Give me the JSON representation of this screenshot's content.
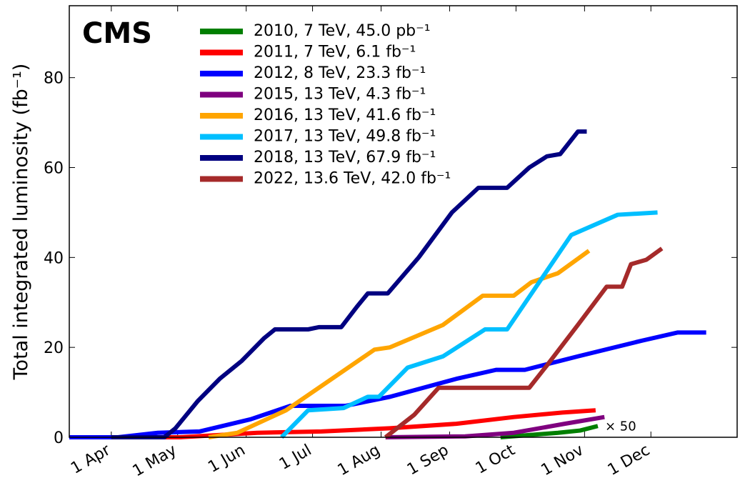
{
  "chart_data": {
    "type": "line",
    "y_label": "Total integrated luminosity (fb⁻¹)",
    "annotations": [
      "CMS",
      "× 50"
    ],
    "xlim": [
      72,
      374
    ],
    "ylim": [
      0,
      96
    ],
    "xticks": [
      {
        "value": 91,
        "label": "1 Apr"
      },
      {
        "value": 121,
        "label": "1 May"
      },
      {
        "value": 152,
        "label": "1 Jun"
      },
      {
        "value": 182,
        "label": "1 Jul"
      },
      {
        "value": 213,
        "label": "1 Aug"
      },
      {
        "value": 244,
        "label": "1 Sep"
      },
      {
        "value": 274,
        "label": "1 Oct"
      },
      {
        "value": 305,
        "label": "1 Nov"
      },
      {
        "value": 335,
        "label": "1 Dec"
      }
    ],
    "yticks": [
      0,
      20,
      40,
      60,
      80
    ],
    "legend": "upper center",
    "series": [
      {
        "name": "2010, 7 TeV, 45.0 pb⁻¹",
        "color": "#007f00",
        "x": [
          267,
          280,
          293,
          303,
          311
        ],
        "values": [
          0,
          0.5,
          1,
          1.5,
          2.5
        ]
      },
      {
        "name": "2011, 7 TeV, 6.1 fb⁻¹",
        "color": "#ff0000",
        "x": [
          72,
          122,
          157,
          186,
          217,
          247,
          273,
          295,
          310
        ],
        "values": [
          0,
          0,
          1,
          1.3,
          2,
          3,
          4.5,
          5.5,
          6
        ]
      },
      {
        "name": "2012, 8 TeV, 23.3 fb⁻¹",
        "color": "#0000ff",
        "x": [
          72,
          94,
          112,
          131,
          154,
          172,
          197,
          217,
          247,
          265,
          278,
          302,
          331,
          347,
          360
        ],
        "values": [
          0,
          0,
          1,
          1.3,
          4,
          7,
          7,
          9,
          13,
          15,
          15,
          18,
          21.5,
          23.3,
          23.3
        ]
      },
      {
        "name": "2015, 13 TeV, 4.3 fb⁻¹",
        "color": "#7f007f",
        "x": [
          215,
          251,
          273,
          296,
          314
        ],
        "values": [
          0,
          0.2,
          1,
          3,
          4.5
        ]
      },
      {
        "name": "2016, 13 TeV, 41.6 fb⁻¹",
        "color": "#ffa500",
        "x": [
          135,
          148,
          170,
          210,
          217,
          241,
          259,
          273,
          281,
          293,
          307
        ],
        "values": [
          0,
          1,
          6,
          19.5,
          20,
          25,
          31.5,
          31.5,
          34.5,
          36.5,
          41.5
        ]
      },
      {
        "name": "2017, 13 TeV, 49.8 fb⁻¹",
        "color": "#00bfff",
        "x": [
          168,
          180,
          196,
          207,
          212,
          225,
          241,
          260,
          270,
          299,
          320,
          338
        ],
        "values": [
          0,
          6,
          6.5,
          9,
          9,
          15.5,
          18,
          24,
          24,
          45,
          49.5,
          50
        ]
      },
      {
        "name": "2018, 13 TeV, 67.9 fb⁻¹",
        "color": "#000080",
        "x": [
          91,
          115,
          120,
          130,
          140,
          150,
          160,
          165,
          180,
          185,
          195,
          202,
          207,
          216,
          230,
          245,
          257,
          270,
          280,
          288,
          294,
          302,
          306
        ],
        "values": [
          0,
          0,
          2,
          8,
          13,
          17,
          22,
          24,
          24,
          24.5,
          24.5,
          29,
          32,
          32,
          40,
          50,
          55.5,
          55.5,
          60,
          62.5,
          63,
          68,
          68
        ]
      },
      {
        "name": "2022, 13.6 TeV, 42.0 fb⁻¹",
        "color": "#a52a2a",
        "x": [
          215,
          228,
          239,
          280,
          288,
          302,
          315,
          322,
          326,
          333,
          340
        ],
        "values": [
          0,
          5,
          11,
          11,
          16,
          25,
          33.5,
          33.5,
          38.5,
          39.5,
          42
        ]
      }
    ]
  }
}
